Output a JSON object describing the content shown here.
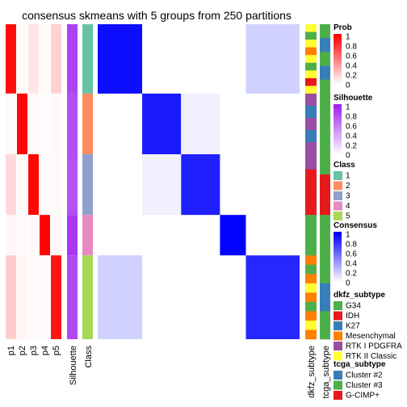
{
  "title": "consensus skmeans with 5 groups from 250 partitions",
  "colors": {
    "prob_low": "#ffffff",
    "prob_high": "#ff0000",
    "sil_low": "#ffffff",
    "sil_high": "#a020f0",
    "cons_low": "#ffffff",
    "cons_high": "#0000ff",
    "class": [
      "#66c2a5",
      "#fc8d62",
      "#8da0cb",
      "#e78ac3",
      "#a6d854"
    ],
    "dkfz": {
      "G34": "#4daf4a",
      "IDH": "#e41a1c",
      "K27": "#377eb8",
      "Mesenchymal": "#ff7f00",
      "RTK I PDGFRA": "#984ea3",
      "RTK II Classic": "#ffff33"
    },
    "tcga": {
      "Cluster #2": "#377eb8",
      "Cluster #3": "#4daf4a",
      "G-CIMP+": "#e41a1c"
    }
  },
  "chart_data": {
    "type": "heatmap",
    "title": "consensus skmeans with 5 groups from 250 partitions",
    "columns_left": [
      "p1",
      "p2",
      "p3",
      "p4",
      "p5",
      "Silhouette",
      "Class"
    ],
    "columns_right": [
      "dkfz_subtype",
      "tcga_subtype"
    ],
    "group_fractions": [
      0.24,
      0.21,
      0.21,
      0.14,
      0.29
    ],
    "group_membership_prob": [
      0.95,
      0.98,
      0.97,
      0.99,
      0.9
    ],
    "silhouette": [
      0.85,
      0.8,
      0.78,
      0.9,
      0.82
    ],
    "consensus_within": [
      0.95,
      0.9,
      0.88,
      0.99,
      0.85
    ],
    "legends": [
      {
        "title": "Prob",
        "type": "gradient",
        "ticks": [
          "1",
          "0.8",
          "0.6",
          "0.4",
          "0.2",
          "0"
        ]
      },
      {
        "title": "Silhouette",
        "type": "gradient",
        "ticks": [
          "1",
          "0.8",
          "0.6",
          "0.4",
          "0.2",
          "0"
        ]
      },
      {
        "title": "Class",
        "type": "discrete",
        "entries": [
          "1",
          "2",
          "3",
          "4",
          "5"
        ]
      },
      {
        "title": "Consensus",
        "type": "gradient",
        "ticks": [
          "1",
          "0.8",
          "0.6",
          "0.4",
          "0.2",
          "0"
        ]
      },
      {
        "title": "dkfz_subtype",
        "type": "discrete",
        "entries": [
          "G34",
          "IDH",
          "K27",
          "Mesenchymal",
          "RTK I PDGFRA",
          "RTK II Classic"
        ]
      },
      {
        "title": "tcga_subtype",
        "type": "discrete",
        "entries": [
          "Cluster #2",
          "Cluster #3",
          "G-CIMP+"
        ]
      }
    ]
  }
}
